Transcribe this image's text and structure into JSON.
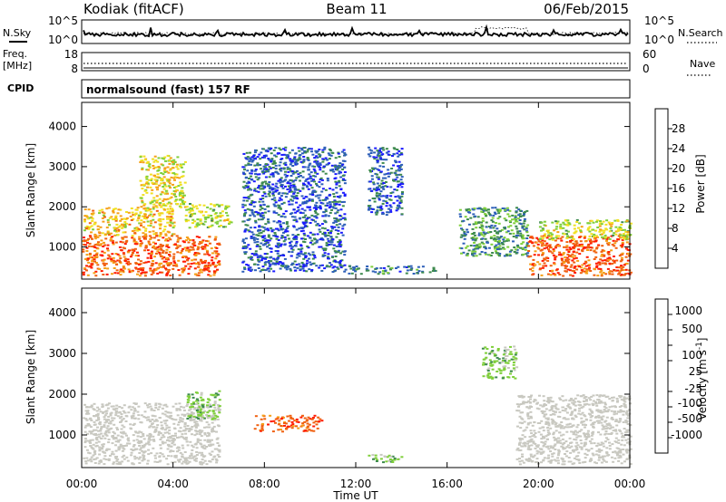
{
  "header": {
    "station": "Kodiak (fitACF)",
    "beam": "Beam 11",
    "date": "06/Feb/2015"
  },
  "strips": {
    "nsky_label": "N.Sky",
    "nsearch_label": "N.Search",
    "noise_ticks": [
      "10^5",
      "10^0"
    ],
    "freq_label_1": "Freq.",
    "freq_label_2": "[MHz]",
    "freq_ticks": [
      "18",
      "8"
    ],
    "nave_label": "Nave",
    "nave_ticks": [
      "60",
      "0"
    ],
    "cpid_label": "CPID",
    "cpid_text": "normalsound (fast) 157 RF"
  },
  "colors": {
    "power_scale": [
      "#1a1aff",
      "#2d5fb8",
      "#3d8a4e",
      "#7fcf3a",
      "#f0e020",
      "#f5a018",
      "#f06010",
      "#ff1a00"
    ],
    "velocity_scale": [
      "#ff1a00",
      "#f06010",
      "#f5a018",
      "#f0e020",
      "#c8c8c0",
      "#c8c8c0",
      "#7fcf3a",
      "#3d8a4e",
      "#2d5fb8",
      "#1a4fd0"
    ],
    "ground_scatter": "#c8c8c0"
  },
  "chart_data": [
    {
      "type": "heatmap",
      "name": "power",
      "xlabel": "",
      "ylabel": "Slant Range [km]",
      "x_range_hours": [
        0,
        24
      ],
      "ylim": [
        200,
        4600
      ],
      "y_ticks": [
        "1000",
        "2000",
        "3000",
        "4000"
      ],
      "colorbar_label": "Power [dB]",
      "colorbar_ticks": [
        "4",
        "8",
        "12",
        "16",
        "20",
        "24",
        "28"
      ],
      "colorbar_range": [
        0,
        32
      ],
      "regions": [
        {
          "t": [
            0.0,
            6.0
          ],
          "r": [
            300,
            1300
          ],
          "value": 26
        },
        {
          "t": [
            0.0,
            4.0
          ],
          "r": [
            1300,
            2000
          ],
          "value": 20
        },
        {
          "t": [
            2.5,
            4.5
          ],
          "r": [
            2000,
            3300
          ],
          "value": 18
        },
        {
          "t": [
            4.5,
            6.5
          ],
          "r": [
            1500,
            2100
          ],
          "value": 16
        },
        {
          "t": [
            7.0,
            11.5
          ],
          "r": [
            400,
            3500
          ],
          "value": 6
        },
        {
          "t": [
            11.5,
            15.5
          ],
          "r": [
            350,
            550
          ],
          "value": 8
        },
        {
          "t": [
            12.5,
            14.0
          ],
          "r": [
            1800,
            3500
          ],
          "value": 6
        },
        {
          "t": [
            16.5,
            19.5
          ],
          "r": [
            800,
            2000
          ],
          "value": 10
        },
        {
          "t": [
            19.5,
            24.0
          ],
          "r": [
            300,
            1300
          ],
          "value": 27
        },
        {
          "t": [
            20.0,
            24.0
          ],
          "r": [
            1200,
            1700
          ],
          "value": 16
        }
      ]
    },
    {
      "type": "heatmap",
      "name": "velocity",
      "xlabel": "Time UT",
      "ylabel": "Slant Range [km]",
      "x_range_hours": [
        0,
        24
      ],
      "ylim": [
        200,
        4600
      ],
      "y_ticks": [
        "1000",
        "2000",
        "3000",
        "4000"
      ],
      "colorbar_label": "Velocity [m s^-1]",
      "colorbar_ticks": [
        "-1000",
        "-500",
        "-100",
        "-25",
        "25",
        "100",
        "500",
        "1000"
      ],
      "colorbar_range": [
        -1000,
        1000
      ],
      "x_ticks": [
        "00:00",
        "04:00",
        "08:00",
        "12:00",
        "16:00",
        "20:00",
        "00:00"
      ],
      "regions": [
        {
          "t": [
            0.0,
            6.0
          ],
          "r": [
            300,
            1800
          ],
          "value": 0,
          "ground_scatter": true
        },
        {
          "t": [
            4.5,
            6.0
          ],
          "r": [
            1400,
            2100
          ],
          "value": 150
        },
        {
          "t": [
            7.5,
            10.5
          ],
          "r": [
            1100,
            1500
          ],
          "value": -300
        },
        {
          "t": [
            12.5,
            14.0
          ],
          "r": [
            350,
            550
          ],
          "value": 120
        },
        {
          "t": [
            17.5,
            19.0
          ],
          "r": [
            2400,
            3200
          ],
          "value": 150
        },
        {
          "t": [
            19.0,
            24.0
          ],
          "r": [
            300,
            2000
          ],
          "value": 0,
          "ground_scatter": true
        }
      ]
    }
  ]
}
